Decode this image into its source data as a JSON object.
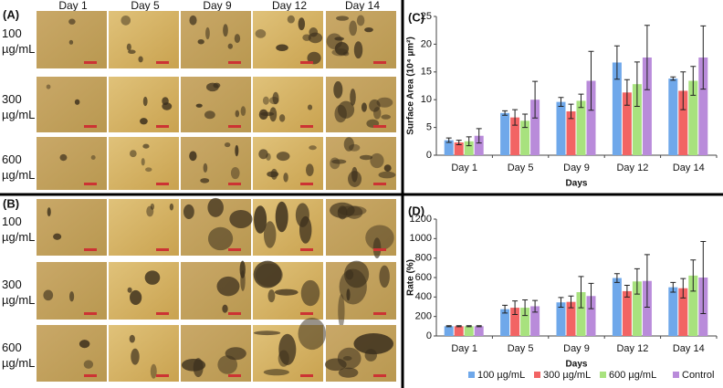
{
  "image_days": [
    "Day 1",
    "Day 5",
    "Day 9",
    "Day 12",
    "Day 14"
  ],
  "image_panels": [
    {
      "label": "(A)",
      "rows": [
        "100 µg/mL",
        "300 µg/mL",
        "600 µg/mL"
      ]
    },
    {
      "label": "(B)",
      "rows": [
        "100 µg/mL",
        "300 µg/mL",
        "600 µg/mL"
      ]
    }
  ],
  "chart_data": [
    {
      "type": "bar",
      "label": "(C)",
      "ylabel": "Surface Area (10⁴ µm²)",
      "xlabel": "Days",
      "categories": [
        "Day 1",
        "Day 5",
        "Day 9",
        "Day 12",
        "Day 14"
      ],
      "ylim": [
        0,
        25
      ],
      "yticks": [
        0,
        5,
        10,
        15,
        20,
        25
      ],
      "series": [
        {
          "color": "#6fa8ea",
          "values": [
            2.7,
            7.6,
            9.6,
            16.7,
            13.8
          ],
          "errors": [
            0.4,
            0.4,
            0.8,
            3.0,
            0.3
          ]
        },
        {
          "color": "#f26464",
          "values": [
            2.3,
            6.8,
            7.9,
            11.3,
            11.6
          ],
          "errors": [
            0.4,
            1.4,
            1.3,
            2.3,
            3.4
          ]
        },
        {
          "color": "#a8e27e",
          "values": [
            2.5,
            6.2,
            9.8,
            12.8,
            13.4
          ],
          "errors": [
            0.8,
            1.2,
            1.2,
            4.0,
            2.6
          ]
        },
        {
          "color": "#b98bda",
          "values": [
            3.5,
            10.0,
            13.4,
            17.6,
            17.6
          ],
          "errors": [
            1.3,
            3.3,
            5.3,
            5.8,
            5.7
          ]
        }
      ]
    },
    {
      "type": "bar",
      "label": "(D)",
      "ylabel": "Rate (%)",
      "xlabel": "Days",
      "categories": [
        "Day 1",
        "Day 5",
        "Day 9",
        "Day 12",
        "Day 14"
      ],
      "ylim": [
        0,
        1200
      ],
      "yticks": [
        0,
        200,
        400,
        600,
        800,
        1000,
        1200
      ],
      "series": [
        {
          "name": "100 µg/mL",
          "color": "#6fa8ea",
          "values": [
            100,
            275,
            345,
            595,
            500
          ],
          "errors": [
            5,
            40,
            50,
            45,
            50
          ]
        },
        {
          "name": "300 µg/mL",
          "color": "#f26464",
          "values": [
            100,
            290,
            350,
            460,
            490
          ],
          "errors": [
            5,
            70,
            60,
            60,
            100
          ]
        },
        {
          "name": "600 µg/mL",
          "color": "#a8e27e",
          "values": [
            100,
            290,
            450,
            560,
            620
          ],
          "errors": [
            5,
            80,
            160,
            130,
            160
          ]
        },
        {
          "name": "Control",
          "color": "#b98bda",
          "values": [
            100,
            305,
            410,
            565,
            600
          ],
          "errors": [
            5,
            60,
            130,
            270,
            370
          ]
        }
      ]
    }
  ]
}
